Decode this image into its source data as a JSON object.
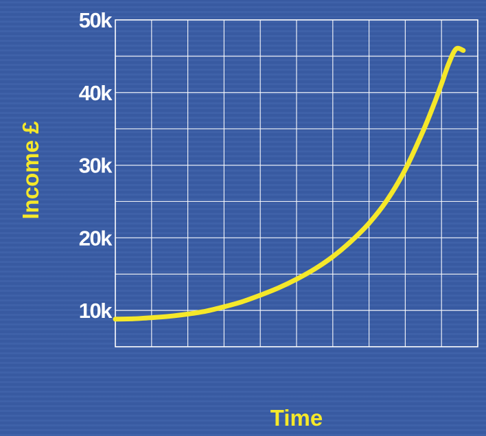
{
  "chart_data": {
    "type": "line",
    "title": "",
    "xlabel": "Time",
    "ylabel": "Income £",
    "xlim": [
      0,
      10
    ],
    "ylim": [
      5000,
      50000
    ],
    "yticks": [
      10000,
      20000,
      30000,
      40000,
      50000
    ],
    "ytick_labels": [
      "10k",
      "20k",
      "30k",
      "40k",
      "50k"
    ],
    "xticks": [],
    "grid": true,
    "x_gridlines": 10,
    "y_gridlines": [
      10000,
      15000,
      20000,
      25000,
      30000,
      35000,
      40000,
      45000
    ],
    "colors": {
      "background": "#3a5da6",
      "grid": "#ffffff",
      "series": "#f5e82a",
      "tick_labels": "#ffffff",
      "axis_titles": "#f5e82a"
    },
    "series": [
      {
        "values_x": [
          0,
          0.5,
          1,
          1.5,
          2,
          2.5,
          3,
          3.5,
          4,
          4.5,
          5,
          5.5,
          6,
          6.5,
          7,
          7.5,
          8,
          8.5,
          8.8,
          9,
          9.2,
          9.4,
          9.6
        ],
        "values_y": [
          8800,
          8850,
          9000,
          9200,
          9500,
          9900,
          10500,
          11200,
          12100,
          13100,
          14300,
          15700,
          17400,
          19500,
          22000,
          25200,
          29400,
          34800,
          38500,
          41200,
          44000,
          46000,
          45800
        ]
      }
    ]
  }
}
